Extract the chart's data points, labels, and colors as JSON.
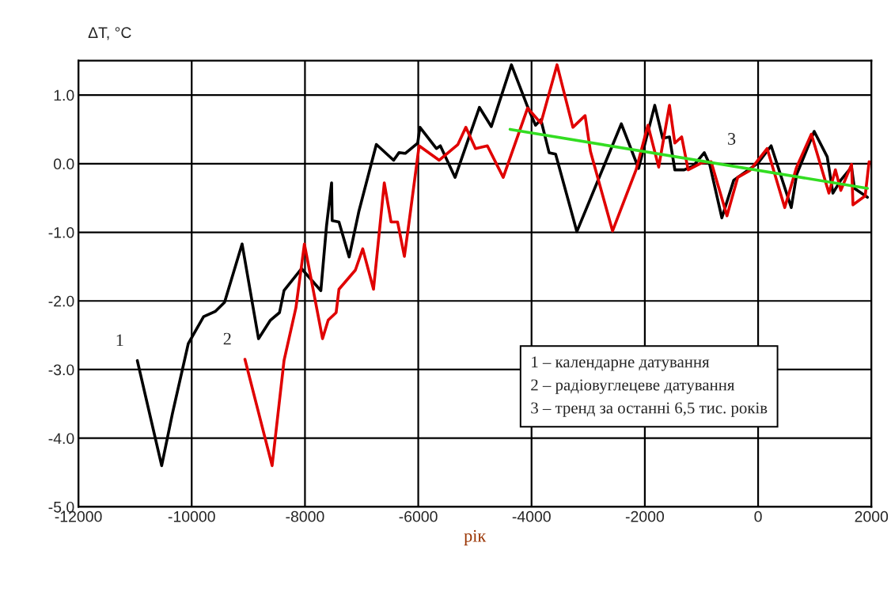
{
  "chart_data": {
    "type": "line",
    "xlabel": "рік",
    "ylabel": "ΔT, °C",
    "xlim": [
      -12000,
      2000
    ],
    "ylim": [
      -5,
      1.5
    ],
    "xticks": [
      -12000,
      -10000,
      -8000,
      -6000,
      -4000,
      -2000,
      0,
      2000
    ],
    "yticks": [
      {
        "value": -5,
        "label": "-5.0"
      },
      {
        "value": -4,
        "label": "-4.0"
      },
      {
        "value": -3,
        "label": "-3.0"
      },
      {
        "value": -2,
        "label": "-2.0"
      },
      {
        "value": -1,
        "label": "-1.0"
      },
      {
        "value": 0,
        "label": "0.0"
      },
      {
        "value": 1,
        "label": "1.0"
      }
    ],
    "grid": true,
    "line_style": "solid",
    "marker": "none",
    "series": [
      {
        "name": "1",
        "color": "#000000",
        "x": [
          -10960,
          -10530,
          -10340,
          -10060,
          -9790,
          -9580,
          -9420,
          -9110,
          -8820,
          -8610,
          -8450,
          -8370,
          -8060,
          -7720,
          -7620,
          -7530,
          -7520,
          -7400,
          -7220,
          -7050,
          -6740,
          -6435,
          -6340,
          -6230,
          -6010,
          -5970,
          -5680,
          -5610,
          -5350,
          -4920,
          -4710,
          -4355,
          -4070,
          -3930,
          -3835,
          -3690,
          -3575,
          -3200,
          -2415,
          -2110,
          -1825,
          -1685,
          -1565,
          -1470,
          -1305,
          -1140,
          -950,
          -855,
          -640,
          -430,
          0,
          230,
          585,
          680,
          990,
          1220,
          1320,
          1460,
          1650,
          1700,
          1930
        ],
        "values": [
          -2.87,
          -4.4,
          -3.64,
          -2.62,
          -2.23,
          -2.15,
          -2.02,
          -1.17,
          -2.55,
          -2.28,
          -2.17,
          -1.85,
          -1.53,
          -1.85,
          -0.91,
          -0.28,
          -0.83,
          -0.85,
          -1.36,
          -0.7,
          0.28,
          0.05,
          0.16,
          0.15,
          0.3,
          0.53,
          0.22,
          0.26,
          -0.2,
          0.82,
          0.54,
          1.44,
          0.83,
          0.56,
          0.64,
          0.16,
          0.14,
          -0.99,
          0.58,
          -0.07,
          0.85,
          0.37,
          0.39,
          -0.09,
          -0.09,
          -0.03,
          0.16,
          -0.01,
          -0.79,
          -0.24,
          0.01,
          0.26,
          -0.64,
          -0.16,
          0.47,
          0.1,
          -0.43,
          -0.24,
          -0.05,
          -0.36,
          -0.49
        ]
      },
      {
        "name": "2",
        "color": "#e00000",
        "x": [
          -9060,
          -8580,
          -8370,
          -8160,
          -8010,
          -7690,
          -7590,
          -7450,
          -7400,
          -7110,
          -6980,
          -6790,
          -6600,
          -6480,
          -6365,
          -6245,
          -6175,
          -5985,
          -5630,
          -5300,
          -5160,
          -4990,
          -4780,
          -4500,
          -4070,
          -3835,
          -3550,
          -3270,
          -3055,
          -2960,
          -2570,
          -2155,
          -1945,
          -1755,
          -1565,
          -1470,
          -1350,
          -1235,
          -1000,
          -830,
          -550,
          -360,
          -145,
          160,
          470,
          680,
          940,
          1250,
          1365,
          1460,
          1650,
          1675,
          1890,
          1960
        ],
        "values": [
          -2.85,
          -4.4,
          -2.87,
          -2.1,
          -1.17,
          -2.55,
          -2.28,
          -2.17,
          -1.83,
          -1.55,
          -1.24,
          -1.83,
          -0.28,
          -0.85,
          -0.85,
          -1.35,
          -0.93,
          0.26,
          0.05,
          0.28,
          0.53,
          0.22,
          0.26,
          -0.2,
          0.81,
          0.59,
          1.44,
          0.53,
          0.7,
          0.18,
          -0.98,
          -0.09,
          0.56,
          -0.05,
          0.85,
          0.3,
          0.39,
          -0.09,
          0.01,
          0.03,
          -0.76,
          -0.2,
          -0.1,
          0.22,
          -0.64,
          -0.05,
          0.43,
          -0.43,
          -0.09,
          -0.39,
          -0.01,
          -0.6,
          -0.47,
          0.03
        ]
      },
      {
        "name": "3",
        "color": "#33dd22",
        "x": [
          -4380,
          1930
        ],
        "values": [
          0.5,
          -0.36
        ]
      }
    ],
    "annotations": [
      "1 – календарне датування",
      "2 – радіовуглецеве датування",
      "3 – тренд за останні 6,5 тис. років"
    ]
  }
}
